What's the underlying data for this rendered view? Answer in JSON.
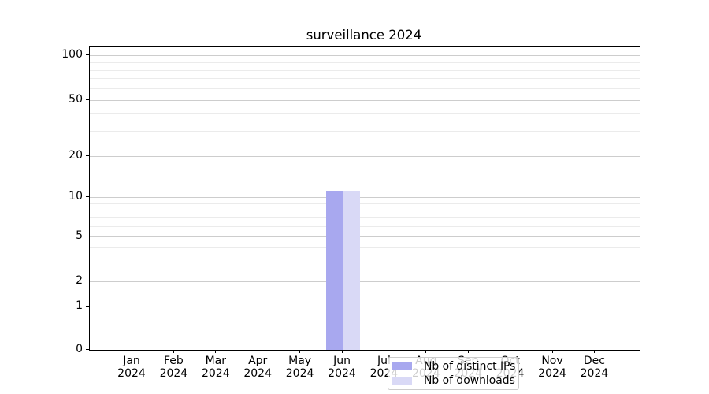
{
  "chart_data": {
    "type": "bar",
    "title": "surveillance 2024",
    "categories": [
      "Jan 2024",
      "Feb 2024",
      "Mar 2024",
      "Apr 2024",
      "May 2024",
      "Jun 2024",
      "Jul 2024",
      "Aug 2024",
      "Sep 2024",
      "Oct 2024",
      "Nov 2024",
      "Dec 2024"
    ],
    "series": [
      {
        "name": "Nb of distinct IPs",
        "color": "#a8a8ef",
        "values": [
          0,
          0,
          0,
          0,
          0,
          11,
          0,
          0,
          0,
          0,
          0,
          0
        ]
      },
      {
        "name": "Nb of downloads",
        "color": "#d9d9f6",
        "values": [
          0,
          0,
          0,
          0,
          0,
          11,
          0,
          0,
          0,
          0,
          0,
          0
        ]
      }
    ],
    "yscale": "symlog",
    "yticks": [
      0,
      1,
      2,
      5,
      10,
      20,
      50,
      100
    ],
    "y_minor_gridlines": [
      3,
      4,
      6,
      7,
      8,
      9,
      30,
      40,
      60,
      70,
      80,
      90
    ],
    "ylim": [
      0,
      115
    ],
    "grid": "horizontal, major and minor",
    "legend_position": "lower center",
    "colors": {
      "bar_distinct_ips": "#a8a8ef",
      "bar_downloads": "#d9d9f6",
      "major_grid": "#cdcdcd",
      "minor_grid": "#ebebeb",
      "axis": "#000000",
      "legend_border": "#cccccc"
    }
  }
}
